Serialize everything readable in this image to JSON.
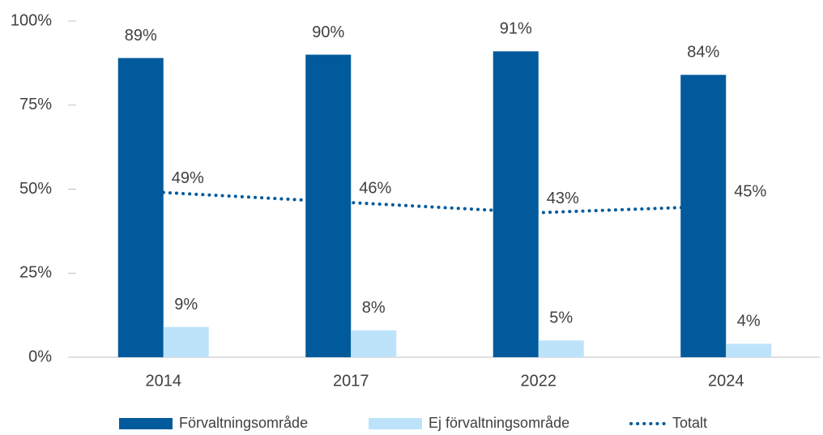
{
  "chart_data": {
    "type": "bar",
    "categories": [
      "2014",
      "2017",
      "2022",
      "2024"
    ],
    "series": [
      {
        "name": "Förvaltningsområde",
        "color": "#005a9b",
        "values": [
          89,
          90,
          91,
          84
        ],
        "value_labels": [
          "89%",
          "90%",
          "91%",
          "84%"
        ]
      },
      {
        "name": "Ej förvaltningsområde",
        "color": "#bde3fa",
        "values": [
          9,
          8,
          5,
          4
        ],
        "value_labels": [
          "9%",
          "8%",
          "5%",
          "4%"
        ]
      },
      {
        "name": "Totalt",
        "type": "line",
        "color": "#005a9b",
        "values": [
          49,
          46,
          43,
          45
        ],
        "value_labels": [
          "49%",
          "46%",
          "43%",
          "45%"
        ]
      }
    ],
    "ylim": [
      0,
      100
    ],
    "yticks": [
      {
        "value": 0,
        "label": "0%"
      },
      {
        "value": 25,
        "label": "25%"
      },
      {
        "value": 50,
        "label": "50%"
      },
      {
        "value": 75,
        "label": "75%"
      },
      {
        "value": 100,
        "label": "100%"
      }
    ],
    "legend": "bottom"
  }
}
